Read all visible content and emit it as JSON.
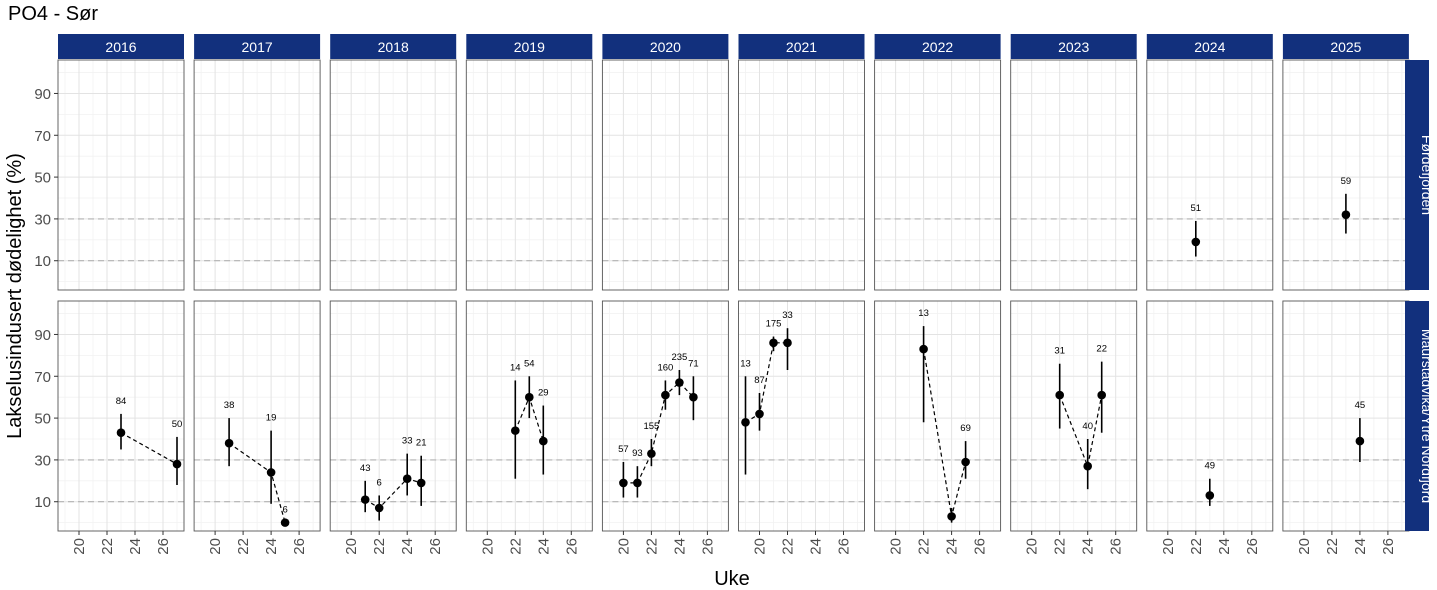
{
  "chart_title": "PO4 - Sør",
  "chart_data": {
    "type": "scatter",
    "title": "PO4 - Sør",
    "xlabel": "Uke",
    "ylabel": "Lakselusindusert dødelighet (%)",
    "x_ticks": [
      20,
      22,
      24,
      26
    ],
    "xlim": [
      18.5,
      27.5
    ],
    "y_ticks": [
      10,
      30,
      50,
      70,
      90
    ],
    "ylim": [
      -4,
      106
    ],
    "reference_lines": [
      10,
      30
    ],
    "grid": true,
    "columns": [
      "2016",
      "2017",
      "2018",
      "2019",
      "2020",
      "2021",
      "2022",
      "2023",
      "2024",
      "2025"
    ],
    "rows": [
      "Førdefjorden",
      "Maurstadvika/Ytre Nordfjord"
    ],
    "panels": [
      {
        "column": "2024",
        "row": "Førdefjorden",
        "points": [
          {
            "week": 22,
            "value": 19,
            "low": 12,
            "high": 29,
            "n": "51"
          }
        ]
      },
      {
        "column": "2025",
        "row": "Førdefjorden",
        "points": [
          {
            "week": 23,
            "value": 32,
            "low": 23,
            "high": 42,
            "n": "59"
          }
        ]
      },
      {
        "column": "2016",
        "row": "Maurstadvika/Ytre Nordfjord",
        "points": [
          {
            "week": 23,
            "value": 43,
            "low": 35,
            "high": 52,
            "n": "84"
          },
          {
            "week": 27,
            "value": 28,
            "low": 18,
            "high": 41,
            "n": "50"
          }
        ]
      },
      {
        "column": "2017",
        "row": "Maurstadvika/Ytre Nordfjord",
        "points": [
          {
            "week": 21,
            "value": 38,
            "low": 27,
            "high": 50,
            "n": "38"
          },
          {
            "week": 24,
            "value": 24,
            "low": 9,
            "high": 44,
            "n": "19"
          },
          {
            "week": 25,
            "value": 0,
            "low": 0,
            "high": 0,
            "n": "6"
          }
        ]
      },
      {
        "column": "2018",
        "row": "Maurstadvika/Ytre Nordfjord",
        "points": [
          {
            "week": 21,
            "value": 11,
            "low": 5,
            "high": 20,
            "n": "43"
          },
          {
            "week": 22,
            "value": 7,
            "low": 1,
            "high": 13,
            "n": "6"
          },
          {
            "week": 24,
            "value": 21,
            "low": 13,
            "high": 33,
            "n": "33"
          },
          {
            "week": 25,
            "value": 19,
            "low": 8,
            "high": 32,
            "n": "21"
          }
        ]
      },
      {
        "column": "2019",
        "row": "Maurstadvika/Ytre Nordfjord",
        "points": [
          {
            "week": 22,
            "value": 44,
            "low": 21,
            "high": 68,
            "n": "14"
          },
          {
            "week": 23,
            "value": 60,
            "low": 50,
            "high": 70,
            "n": "54"
          },
          {
            "week": 24,
            "value": 39,
            "low": 23,
            "high": 56,
            "n": "29"
          }
        ]
      },
      {
        "column": "2020",
        "row": "Maurstadvika/Ytre Nordfjord",
        "points": [
          {
            "week": 20,
            "value": 19,
            "low": 12,
            "high": 29,
            "n": "57"
          },
          {
            "week": 21,
            "value": 19,
            "low": 12,
            "high": 27,
            "n": "93"
          },
          {
            "week": 22,
            "value": 33,
            "low": 27,
            "high": 40,
            "n": "155"
          },
          {
            "week": 23,
            "value": 61,
            "low": 54,
            "high": 68,
            "n": "160"
          },
          {
            "week": 24,
            "value": 67,
            "low": 61,
            "high": 73,
            "n": "235"
          },
          {
            "week": 25,
            "value": 60,
            "low": 49,
            "high": 70,
            "n": "71"
          }
        ]
      },
      {
        "column": "2021",
        "row": "Maurstadvika/Ytre Nordfjord",
        "points": [
          {
            "week": 19,
            "value": 48,
            "low": 23,
            "high": 70,
            "n": "13"
          },
          {
            "week": 20,
            "value": 52,
            "low": 44,
            "high": 62,
            "n": "87"
          },
          {
            "week": 21,
            "value": 86,
            "low": 82,
            "high": 89,
            "n": "175"
          },
          {
            "week": 22,
            "value": 86,
            "low": 73,
            "high": 93,
            "n": "33"
          }
        ]
      },
      {
        "column": "2022",
        "row": "Maurstadvika/Ytre Nordfjord",
        "points": [
          {
            "week": 22,
            "value": 83,
            "low": 48,
            "high": 94,
            "n": "13"
          },
          {
            "week": 24,
            "value": 3,
            "low": 0,
            "high": 7,
            "n": ""
          },
          {
            "week": 25,
            "value": 29,
            "low": 21,
            "high": 39,
            "n": "69"
          }
        ]
      },
      {
        "column": "2023",
        "row": "Maurstadvika/Ytre Nordfjord",
        "points": [
          {
            "week": 22,
            "value": 61,
            "low": 45,
            "high": 76,
            "n": "31"
          },
          {
            "week": 24,
            "value": 27,
            "low": 16,
            "high": 40,
            "n": "40"
          },
          {
            "week": 25,
            "value": 61,
            "low": 43,
            "high": 77,
            "n": "22"
          }
        ]
      },
      {
        "column": "2024",
        "row": "Maurstadvika/Ytre Nordfjord",
        "points": [
          {
            "week": 23,
            "value": 13,
            "low": 8,
            "high": 21,
            "n": "49"
          }
        ]
      },
      {
        "column": "2025",
        "row": "Maurstadvika/Ytre Nordfjord",
        "points": [
          {
            "week": 24,
            "value": 39,
            "low": 29,
            "high": 50,
            "n": "45"
          }
        ]
      }
    ],
    "colors": {
      "strip_fill": "#12307D",
      "strip_text": "#ffffff",
      "panel_border": "#555555",
      "grid_major": "#e3e3e3",
      "grid_minor": "#f2f2f2",
      "reference_line": "#b3b3b3",
      "point": "#000000"
    }
  }
}
